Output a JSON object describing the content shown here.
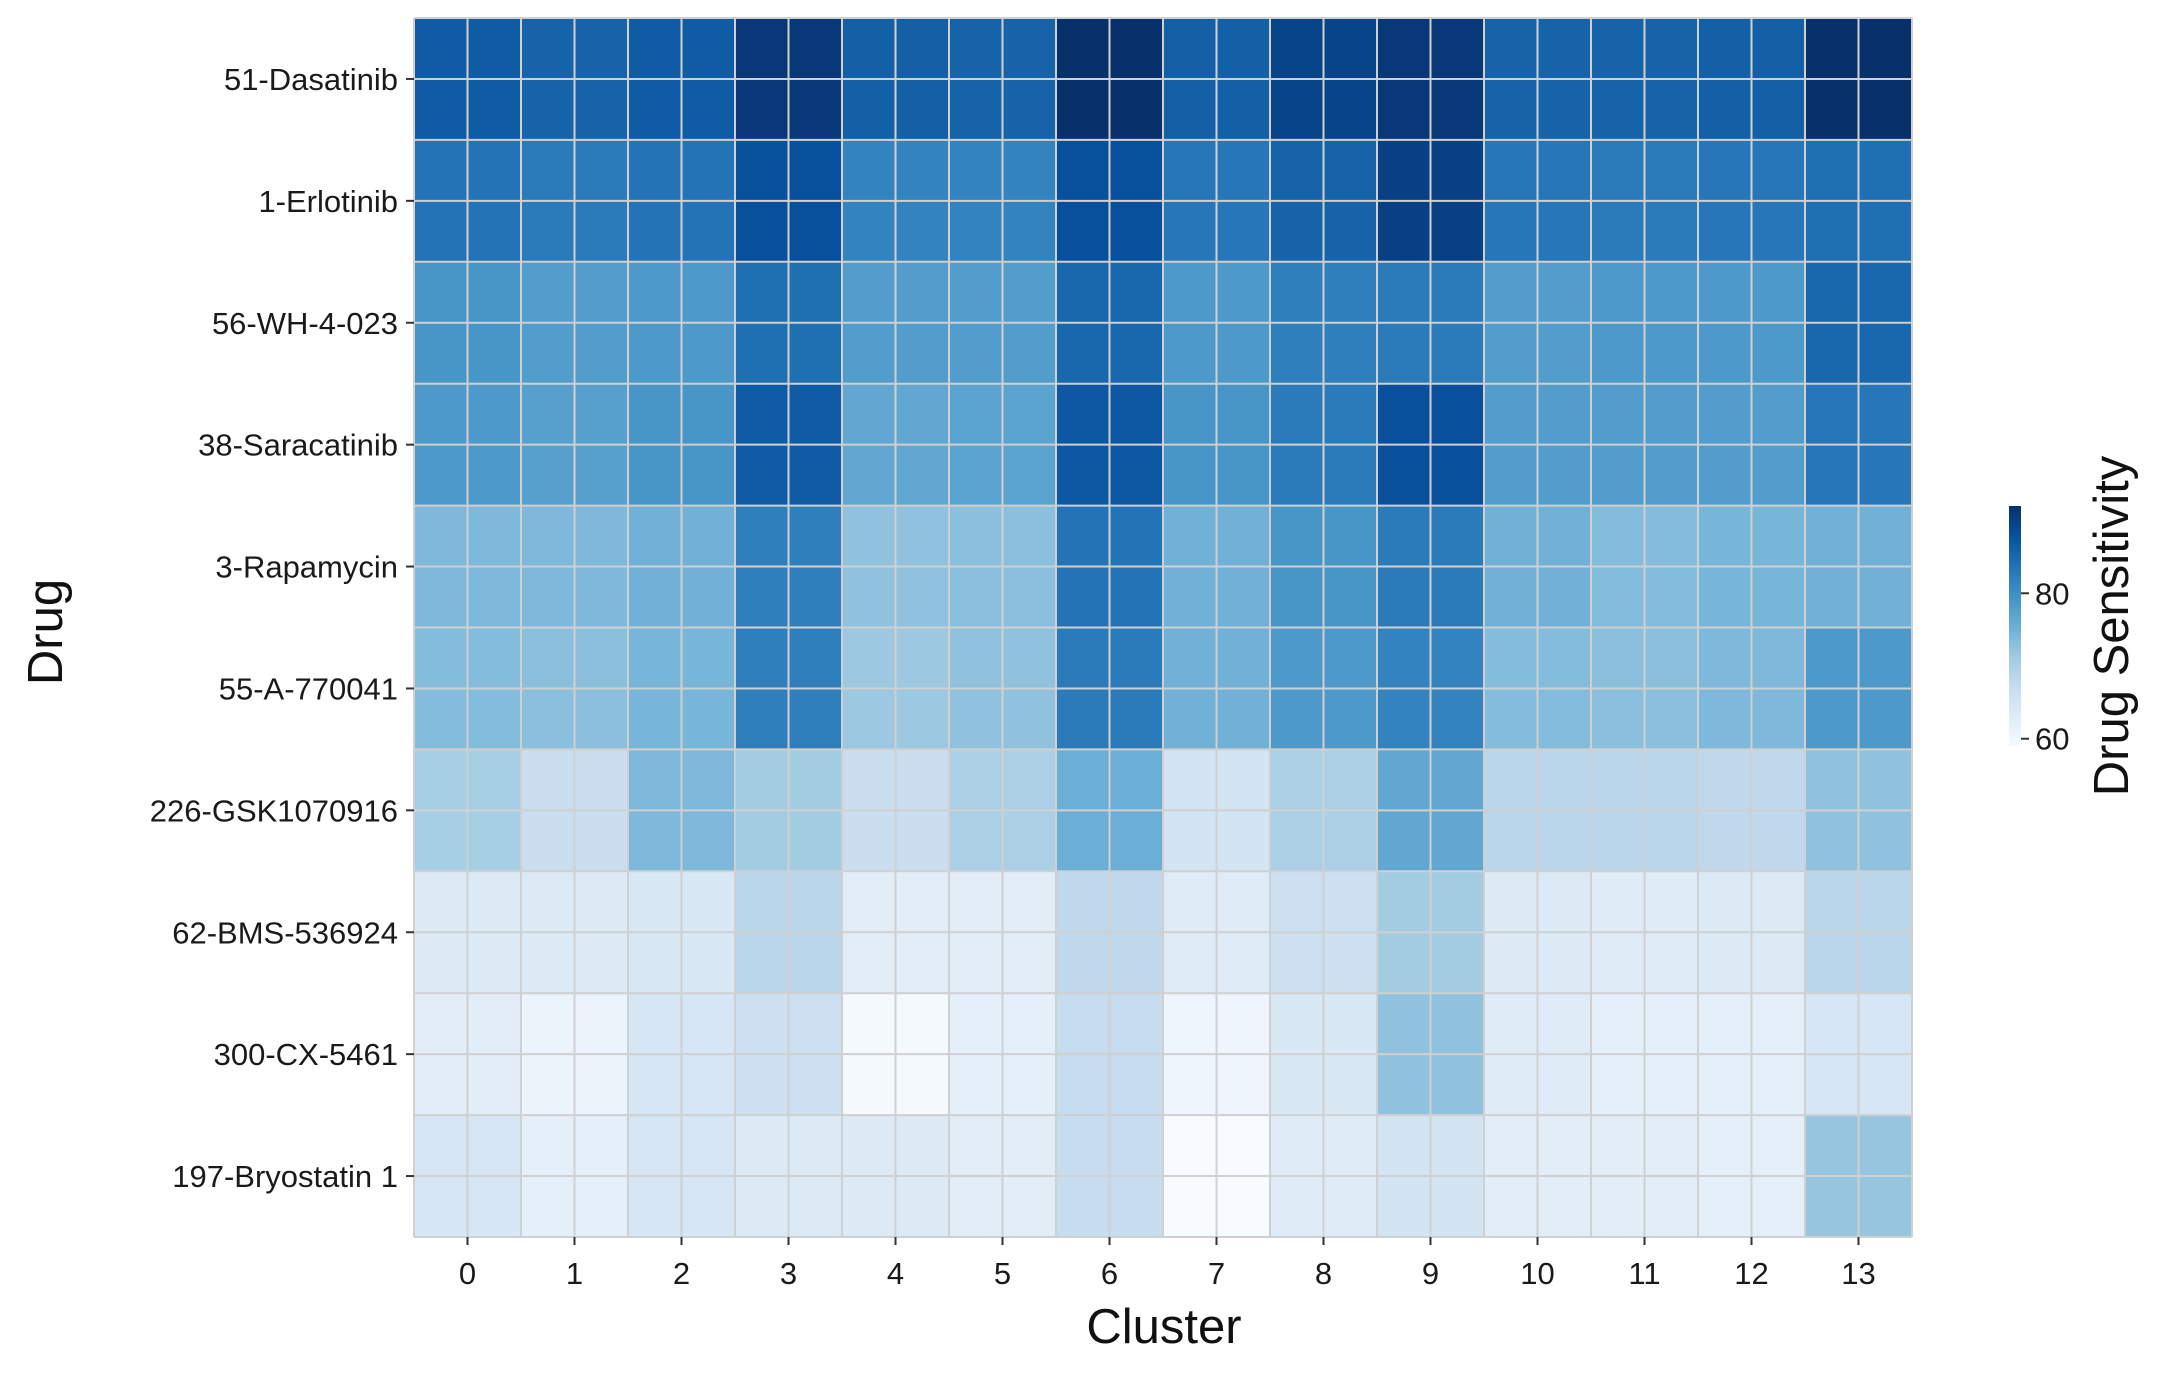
{
  "chart_data": {
    "type": "heatmap",
    "xlabel": "Cluster",
    "ylabel": "Drug",
    "colorbar_label": "Drug Sensitivity",
    "colorbar_ticks": [
      60,
      80
    ],
    "colorbar_range": [
      59,
      92
    ],
    "colormap": "Blues",
    "grid": true,
    "x_categories": [
      "0",
      "1",
      "2",
      "3",
      "4",
      "5",
      "6",
      "7",
      "8",
      "9",
      "10",
      "11",
      "12",
      "13"
    ],
    "y_categories": [
      "51-Dasatinib",
      "1-Erlotinib",
      "56-WH-4-023",
      "38-Saracatinib",
      "3-Rapamycin",
      "55-A-770041",
      "226-GSK1070916",
      "62-BMS-536924",
      "300-CX-5461",
      "197-Bryostatin 1"
    ],
    "values": [
      [
        86.5,
        85.5,
        86.5,
        91.0,
        86.0,
        85.5,
        93.0,
        86.0,
        89.5,
        91.0,
        85.5,
        85.5,
        86.0,
        92.5
      ],
      [
        83.5,
        82.5,
        83.5,
        88.0,
        81.5,
        81.5,
        88.0,
        83.0,
        85.5,
        90.0,
        83.0,
        82.5,
        83.0,
        84.0
      ],
      [
        79.0,
        78.0,
        78.5,
        84.0,
        78.0,
        78.0,
        85.0,
        78.5,
        82.0,
        82.5,
        78.0,
        78.5,
        78.5,
        85.0
      ],
      [
        78.5,
        77.5,
        79.0,
        86.5,
        76.5,
        77.0,
        87.0,
        79.0,
        82.5,
        88.0,
        78.0,
        78.0,
        78.0,
        83.0
      ],
      [
        74.0,
        74.0,
        75.0,
        82.0,
        72.5,
        73.0,
        83.5,
        75.0,
        79.0,
        82.5,
        75.0,
        73.5,
        74.5,
        75.0
      ],
      [
        73.5,
        73.0,
        74.5,
        82.0,
        71.5,
        72.5,
        82.5,
        75.0,
        78.5,
        81.5,
        73.5,
        73.0,
        74.0,
        78.5
      ],
      [
        70.5,
        66.5,
        74.0,
        71.0,
        66.5,
        70.0,
        75.5,
        65.0,
        70.0,
        76.5,
        68.5,
        68.5,
        68.0,
        72.5
      ],
      [
        63.5,
        63.5,
        64.0,
        68.5,
        62.5,
        62.5,
        68.0,
        63.0,
        66.0,
        71.0,
        63.5,
        63.0,
        63.5,
        68.5
      ],
      [
        62.5,
        61.0,
        64.5,
        66.0,
        59.5,
        62.0,
        67.0,
        60.5,
        64.0,
        72.5,
        63.0,
        62.0,
        62.0,
        64.5
      ],
      [
        64.5,
        62.0,
        64.5,
        63.5,
        63.5,
        62.5,
        67.0,
        59.0,
        63.0,
        65.0,
        62.5,
        62.5,
        62.0,
        72.0
      ]
    ]
  }
}
